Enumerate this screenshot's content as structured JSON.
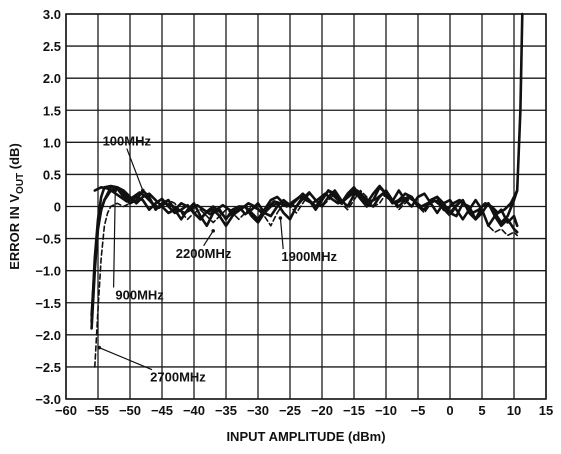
{
  "chart_data": {
    "type": "line",
    "xlabel": "INPUT AMPLITUDE (dBm)",
    "ylabel": "ERROR IN V(OUT) (dB)",
    "ylabel_main": "ERROR IN V",
    "ylabel_sub": "OUT",
    "ylabel_suffix": " (dB)",
    "xlim": [
      -60,
      15
    ],
    "ylim": [
      -3.0,
      3.0
    ],
    "grid": true,
    "x_ticks": [
      -60,
      -55,
      -50,
      -45,
      -40,
      -35,
      -30,
      -25,
      -20,
      -15,
      -10,
      -5,
      0,
      5,
      10,
      15
    ],
    "y_ticks": [
      3.0,
      2.5,
      2.0,
      1.5,
      1.0,
      0.5,
      0,
      -0.5,
      -1.0,
      -1.5,
      -2.0,
      -2.5,
      -3.0
    ],
    "x_tick_labels": [
      "−60",
      "−55",
      "−50",
      "−45",
      "−40",
      "−35",
      "−30",
      "−25",
      "−20",
      "−15",
      "−10",
      "−5",
      "0",
      "5",
      "10",
      "15"
    ],
    "y_tick_labels": [
      "3.0",
      "2.5",
      "2.0",
      "1.5",
      "1.0",
      "0.5",
      "0",
      "−0.5",
      "−1.0",
      "−1.5",
      "−2.0",
      "−2.5",
      "−3.0"
    ],
    "series": [
      {
        "name": "100MHz",
        "dashed": false,
        "x": [
          -55.5,
          -54.5,
          -53.5,
          -52.5,
          -51.5,
          -50.5,
          -49.5,
          -48.5,
          -47.5,
          -46.5,
          -45.5,
          -44.5,
          -43.5,
          -42.5,
          -41.5,
          -40.5,
          -39.5,
          -38.5,
          -37.5,
          -36.5,
          -35.5,
          -34.5,
          -33.5,
          -32.5,
          -31.5,
          -30.5,
          -29.5,
          -28.5,
          -27.5,
          -26.5,
          -25.5,
          -24.5,
          -23.5,
          -22.5,
          -21.5,
          -20.5,
          -19.5,
          -18.5,
          -17.5,
          -16.5,
          -15.5,
          -14.5,
          -13.5,
          -12.5,
          -11.5,
          -10.5,
          -9.5,
          -8.5,
          -7.5,
          -6.5,
          -5.5,
          -4.5,
          -3.5,
          -2.5,
          -1.5,
          -0.5,
          0.5,
          1.5,
          2.5,
          3.5,
          4.5,
          5.5,
          6.5,
          7.5,
          8.5,
          9.5,
          10.5,
          11.0,
          11.3
        ],
        "y": [
          0.25,
          0.3,
          0.28,
          0.22,
          0.15,
          0.08,
          0.15,
          0.22,
          0.15,
          0.05,
          -0.02,
          0.05,
          0.02,
          -0.05,
          -0.1,
          -0.05,
          0.02,
          -0.05,
          -0.12,
          -0.05,
          0.02,
          -0.05,
          -0.1,
          -0.03,
          0.05,
          0.0,
          -0.08,
          -0.02,
          0.08,
          0.05,
          0.0,
          0.08,
          0.15,
          0.1,
          0.05,
          0.12,
          0.2,
          0.12,
          0.05,
          0.1,
          0.18,
          0.25,
          0.15,
          0.08,
          0.12,
          0.2,
          0.12,
          0.05,
          0.1,
          0.15,
          0.08,
          0.0,
          0.05,
          0.1,
          0.02,
          -0.05,
          0.05,
          0.1,
          0.0,
          -0.1,
          -0.05,
          0.05,
          0.0,
          -0.1,
          -0.05,
          0.05,
          0.25,
          1.5,
          3.0
        ]
      },
      {
        "name": "900MHz",
        "dashed": false,
        "x": [
          -56,
          -55.5,
          -55,
          -54.5,
          -54,
          -53.5,
          -53,
          -52,
          -51,
          -50,
          -49,
          -48,
          -47,
          -46,
          -45,
          -44,
          -43,
          -42,
          -41,
          -40,
          -39,
          -38,
          -37,
          -36,
          -35,
          -34,
          -33,
          -32,
          -31,
          -30,
          -29,
          -28,
          -27,
          -26,
          -25,
          -24,
          -23,
          -22,
          -21,
          -20,
          -19,
          -18,
          -17,
          -16,
          -15,
          -14,
          -13,
          -12,
          -11,
          -10,
          -9,
          -8,
          -7,
          -6,
          -5,
          -4,
          -3,
          -2,
          -1,
          0,
          1,
          2,
          3,
          4,
          5,
          6,
          7,
          8,
          9,
          10,
          10.5
        ],
        "y": [
          -1.9,
          -1.0,
          -0.3,
          -0.05,
          0.1,
          0.2,
          0.3,
          0.3,
          0.25,
          0.15,
          0.05,
          0.15,
          0.2,
          0.1,
          0.0,
          -0.1,
          -0.05,
          0.05,
          0.0,
          -0.1,
          -0.2,
          -0.08,
          0.0,
          -0.08,
          -0.18,
          -0.1,
          0.0,
          0.0,
          -0.1,
          -0.2,
          -0.05,
          0.1,
          0.15,
          0.05,
          0.0,
          0.1,
          0.2,
          0.1,
          0.0,
          0.12,
          0.25,
          0.15,
          0.05,
          0.15,
          0.25,
          0.12,
          0.0,
          0.1,
          0.3,
          0.2,
          0.05,
          0.1,
          0.2,
          0.15,
          0.0,
          -0.05,
          0.1,
          0.15,
          0.05,
          -0.1,
          -0.15,
          0.05,
          0.0,
          -0.2,
          -0.1,
          0.05,
          -0.1,
          -0.25,
          -0.15,
          0.1,
          0.25
        ]
      },
      {
        "name": "1900MHz",
        "dashed": false,
        "x": [
          -56,
          -55.5,
          -55,
          -54.5,
          -54,
          -53,
          -52,
          -51,
          -50,
          -49,
          -48,
          -47,
          -46,
          -45,
          -44,
          -43,
          -42,
          -41,
          -40,
          -39,
          -38,
          -37,
          -36,
          -35,
          -34,
          -33,
          -32,
          -31,
          -30,
          -29,
          -28,
          -27,
          -26,
          -25,
          -24,
          -23,
          -22,
          -21,
          -20,
          -19,
          -18,
          -17,
          -16,
          -15,
          -14,
          -13,
          -12,
          -11,
          -10,
          -9,
          -8,
          -7,
          -6,
          -5,
          -4,
          -3,
          -2,
          -1,
          0,
          1,
          2,
          3,
          4,
          5,
          6,
          7,
          8,
          9,
          10,
          10.5
        ],
        "y": [
          -1.8,
          -0.8,
          -0.2,
          0.15,
          0.3,
          0.32,
          0.3,
          0.2,
          0.1,
          0.15,
          0.1,
          -0.05,
          0.05,
          0.12,
          0.0,
          -0.1,
          -0.05,
          0.02,
          -0.1,
          -0.2,
          -0.08,
          -0.05,
          -0.15,
          -0.3,
          -0.15,
          -0.05,
          0.0,
          -0.15,
          -0.25,
          -0.1,
          0.0,
          0.05,
          -0.1,
          -0.2,
          0.0,
          0.15,
          0.1,
          -0.05,
          0.1,
          0.25,
          0.2,
          0.05,
          0.2,
          0.3,
          0.15,
          0.05,
          0.2,
          0.32,
          0.2,
          0.08,
          0.25,
          0.1,
          0.0,
          0.15,
          0.2,
          0.05,
          -0.1,
          0.05,
          0.1,
          -0.05,
          -0.2,
          -0.05,
          0.1,
          -0.05,
          -0.3,
          -0.15,
          -0.05,
          -0.25,
          -0.15,
          -0.3
        ]
      },
      {
        "name": "2200MHz",
        "dashed": false,
        "x": [
          -56,
          -55.5,
          -55,
          -54.5,
          -54,
          -53,
          -52,
          -51,
          -50,
          -49,
          -48,
          -47,
          -46,
          -45,
          -44,
          -43,
          -42,
          -41,
          -40,
          -39,
          -38,
          -37,
          -36,
          -35,
          -34,
          -33,
          -32,
          -31,
          -30,
          -29,
          -28,
          -27,
          -26,
          -25,
          -24,
          -23,
          -22,
          -21,
          -20,
          -19,
          -18,
          -17,
          -16,
          -15,
          -14,
          -13,
          -12,
          -11,
          -10,
          -9,
          -8,
          -7,
          -6,
          -5,
          -4,
          -3,
          -2,
          -1,
          0,
          1,
          2,
          3,
          4,
          5,
          6,
          7,
          8,
          9,
          10,
          10.5
        ],
        "y": [
          -1.7,
          -0.9,
          -0.35,
          -0.05,
          0.1,
          0.25,
          0.28,
          0.15,
          0.05,
          0.1,
          0.25,
          0.15,
          -0.05,
          0.05,
          0.1,
          -0.05,
          -0.2,
          -0.05,
          0.05,
          -0.15,
          -0.3,
          -0.1,
          -0.05,
          -0.2,
          -0.05,
          0.0,
          -0.12,
          -0.05,
          0.05,
          -0.1,
          -0.15,
          0.0,
          0.1,
          0.02,
          0.0,
          0.12,
          0.22,
          0.1,
          0.0,
          0.15,
          0.25,
          0.1,
          0.0,
          0.18,
          0.22,
          0.05,
          0.0,
          0.15,
          0.25,
          0.1,
          0.0,
          0.1,
          0.15,
          0.0,
          -0.05,
          0.1,
          0.15,
          -0.05,
          -0.1,
          0.02,
          0.1,
          -0.1,
          -0.2,
          0.0,
          0.05,
          -0.15,
          -0.3,
          -0.2,
          -0.35,
          -0.4
        ]
      },
      {
        "name": "2700MHz",
        "dashed": true,
        "x": [
          -55.5,
          -55,
          -54.5,
          -54,
          -53.5,
          -53,
          -52,
          -51,
          -50,
          -49,
          -48,
          -47,
          -46,
          -45,
          -44,
          -43,
          -42,
          -41,
          -40,
          -39,
          -38,
          -37,
          -36,
          -35,
          -34,
          -33,
          -32,
          -31,
          -30,
          -29,
          -28,
          -27,
          -26,
          -25,
          -24,
          -23,
          -22,
          -21,
          -20,
          -19,
          -18,
          -17,
          -16,
          -15,
          -14,
          -13,
          -12,
          -11,
          -10,
          -9,
          -8,
          -7,
          -6,
          -5,
          -4,
          -3,
          -2,
          -1,
          0,
          1,
          2,
          3,
          4,
          5,
          6,
          7,
          8,
          9,
          10,
          10.5
        ],
        "y": [
          -2.5,
          -1.6,
          -0.8,
          -0.3,
          -0.1,
          0.0,
          0.05,
          0.0,
          0.05,
          0.15,
          0.2,
          0.1,
          -0.05,
          0.0,
          0.1,
          0.05,
          -0.1,
          -0.2,
          -0.1,
          -0.05,
          -0.15,
          -0.25,
          -0.15,
          -0.05,
          -0.1,
          -0.2,
          -0.1,
          0.0,
          -0.05,
          -0.15,
          -0.3,
          -0.1,
          0.05,
          0.0,
          -0.1,
          0.05,
          0.2,
          0.1,
          0.0,
          0.1,
          0.2,
          0.05,
          -0.05,
          0.1,
          0.25,
          0.15,
          0.0,
          0.05,
          0.2,
          0.1,
          -0.05,
          0.05,
          0.15,
          0.0,
          -0.1,
          0.05,
          0.1,
          -0.05,
          -0.15,
          0.0,
          0.1,
          -0.1,
          -0.2,
          -0.05,
          -0.3,
          -0.4,
          -0.35,
          -0.45,
          -0.4,
          -0.45
        ]
      }
    ],
    "annotations": [
      {
        "text": "100MHz",
        "x": -50.5,
        "y": 0.95,
        "target_x": -48.0,
        "target_y": 0.25
      },
      {
        "text": "900MHz",
        "x": -48.5,
        "y": -1.45,
        "target_x": -52.3,
        "target_y": 0.25
      },
      {
        "text": "2200MHz",
        "x": -38.5,
        "y": -0.8,
        "target_x": -37.0,
        "target_y": -0.38
      },
      {
        "text": "1900MHz",
        "x": -22.0,
        "y": -0.85,
        "target_x": -26.5,
        "target_y": -0.18
      },
      {
        "text": "2700MHz",
        "x": -42.5,
        "y": -2.73,
        "target_x": -54.8,
        "target_y": -2.2
      }
    ]
  }
}
